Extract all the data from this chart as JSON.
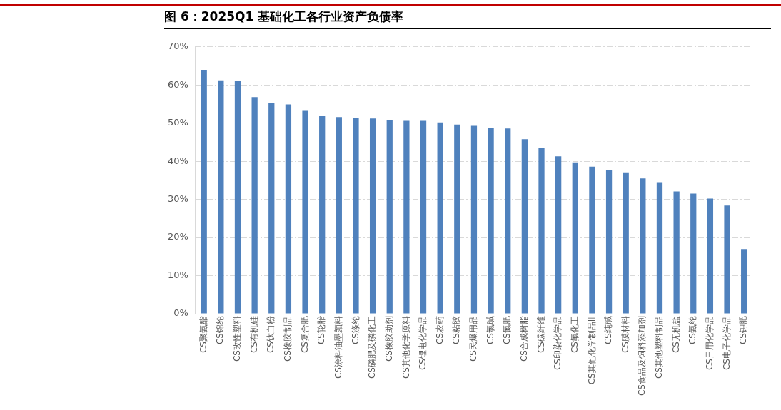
{
  "chart_data": {
    "type": "bar",
    "title": "图 6：2025Q1 基础化工各行业资产负债率",
    "categories": [
      "CS聚氨酯",
      "CS锦纶",
      "CS改性塑料",
      "CS有机硅",
      "CS钛白粉",
      "CS橡胶制品",
      "CS复合肥",
      "CS轮胎",
      "CS涂料油墨颜料",
      "CS涤纶",
      "CS磷肥及磷化工",
      "CS橡胶助剂",
      "CS其他化学原料",
      "CS锂电化学品",
      "CS农药",
      "CS粘胶",
      "CS民爆用品",
      "CS氯碱",
      "CS氮肥",
      "CS合成树脂",
      "CS碳纤维",
      "CS印染化学品",
      "CS氟化工",
      "CS其他化学制品Ⅲ",
      "CS纯碱",
      "CS膜材料",
      "CS食品及饲料添加剂",
      "CS其他塑料制品",
      "CS无机盐",
      "CS氨纶",
      "CS日用化学品",
      "CS电子化学品",
      "CS钾肥"
    ],
    "values": [
      64.0,
      61.2,
      61.0,
      56.8,
      55.3,
      54.9,
      53.4,
      51.9,
      51.6,
      51.4,
      51.2,
      50.9,
      50.8,
      50.8,
      50.2,
      49.6,
      49.3,
      48.8,
      48.6,
      45.8,
      43.4,
      41.3,
      39.7,
      38.6,
      37.7,
      37.1,
      35.5,
      34.5,
      32.1,
      31.5,
      30.2,
      28.4,
      17.0
    ],
    "color": "#4f81bd",
    "ylim": [
      0,
      70
    ],
    "yticks": [
      {
        "value": 0,
        "label": "0%"
      },
      {
        "value": 10,
        "label": "10%"
      },
      {
        "value": 20,
        "label": "20%"
      },
      {
        "value": 30,
        "label": "30%"
      },
      {
        "value": 40,
        "label": "40%"
      },
      {
        "value": 50,
        "label": "50%"
      },
      {
        "value": 60,
        "label": "60%"
      },
      {
        "value": 70,
        "label": "70%"
      }
    ],
    "grid": "y",
    "legend": false
  }
}
